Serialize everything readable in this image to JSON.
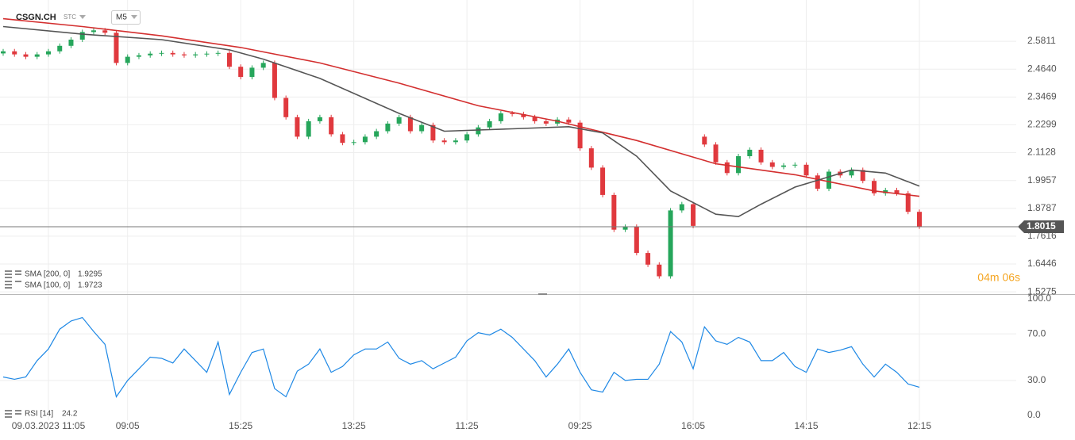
{
  "chart_data": [
    {
      "type": "candlestick",
      "title": "CSGN.CH",
      "source": "STC",
      "interval": "M5",
      "countdown": "04m 06s",
      "current_price": 1.8015,
      "up_color": "#26a65b",
      "down_color": "#e0393e",
      "grid": true,
      "categories": [
        null,
        null,
        null,
        null,
        "09.03.2023 11:05",
        null,
        null,
        null,
        null,
        null,
        null,
        "09:05",
        null,
        null,
        null,
        null,
        null,
        null,
        null,
        null,
        null,
        "15:25",
        null,
        null,
        null,
        null,
        null,
        null,
        null,
        null,
        null,
        "13:25",
        null,
        null,
        null,
        null,
        null,
        null,
        null,
        null,
        null,
        "11:25",
        null,
        null,
        null,
        null,
        null,
        null,
        null,
        null,
        null,
        "09:25",
        null,
        null,
        null,
        null,
        null,
        null,
        null,
        null,
        null,
        "16:05",
        null,
        null,
        null,
        null,
        null,
        null,
        null,
        null,
        null,
        "14:15",
        null,
        null,
        null,
        null,
        null,
        null,
        null,
        null,
        null,
        "12:15"
      ],
      "open": [
        2.53,
        2.539,
        2.526,
        2.516,
        2.526,
        2.539,
        2.562,
        2.588,
        2.62,
        2.627,
        2.617,
        2.49,
        2.516,
        2.522,
        2.529,
        2.532,
        2.526,
        2.522,
        2.526,
        2.529,
        2.532,
        2.474,
        2.431,
        2.47,
        2.49,
        2.343,
        2.262,
        2.18,
        2.245,
        2.262,
        2.19,
        2.154,
        2.157,
        2.18,
        2.203,
        2.235,
        2.262,
        2.203,
        2.229,
        2.164,
        2.157,
        2.164,
        2.19,
        2.219,
        2.245,
        2.278,
        2.275,
        2.262,
        2.245,
        2.235,
        2.252,
        2.239,
        2.131,
        2.05,
        1.935,
        1.789,
        1.801,
        1.691,
        1.642,
        1.593,
        1.87,
        1.896,
        2.18,
        2.147,
        2.072,
        2.027,
        2.098,
        2.125,
        2.072,
        2.053,
        2.059,
        2.062,
        2.017,
        1.961,
        2.033,
        2.017,
        2.04,
        1.994,
        1.942,
        1.955,
        1.942,
        1.864
      ],
      "high": [
        2.549,
        2.549,
        2.536,
        2.536,
        2.549,
        2.572,
        2.598,
        2.63,
        2.637,
        2.637,
        2.627,
        2.526,
        2.532,
        2.539,
        2.542,
        2.542,
        2.536,
        2.536,
        2.539,
        2.542,
        2.542,
        2.484,
        2.48,
        2.5,
        2.5,
        2.353,
        2.272,
        2.255,
        2.272,
        2.272,
        2.2,
        2.167,
        2.19,
        2.213,
        2.245,
        2.272,
        2.272,
        2.239,
        2.239,
        2.174,
        2.174,
        2.2,
        2.229,
        2.255,
        2.288,
        2.288,
        2.285,
        2.272,
        2.255,
        2.262,
        2.262,
        2.249,
        2.141,
        2.06,
        1.945,
        1.811,
        1.811,
        1.701,
        1.652,
        1.88,
        1.906,
        1.906,
        2.19,
        2.157,
        2.082,
        2.108,
        2.135,
        2.135,
        2.082,
        2.069,
        2.072,
        2.072,
        2.027,
        2.043,
        2.043,
        2.05,
        2.05,
        2.004,
        1.965,
        1.965,
        1.952,
        1.874
      ],
      "low": [
        2.52,
        2.516,
        2.506,
        2.506,
        2.516,
        2.529,
        2.552,
        2.578,
        2.61,
        2.607,
        2.48,
        2.48,
        2.506,
        2.512,
        2.519,
        2.516,
        2.512,
        2.512,
        2.516,
        2.519,
        2.464,
        2.421,
        2.421,
        2.46,
        2.333,
        2.252,
        2.17,
        2.17,
        2.235,
        2.18,
        2.144,
        2.144,
        2.147,
        2.17,
        2.193,
        2.225,
        2.193,
        2.193,
        2.154,
        2.147,
        2.147,
        2.154,
        2.18,
        2.209,
        2.235,
        2.265,
        2.252,
        2.235,
        2.225,
        2.225,
        2.229,
        2.121,
        2.04,
        1.925,
        1.779,
        1.779,
        1.681,
        1.632,
        1.583,
        1.583,
        1.86,
        1.795,
        2.137,
        2.062,
        2.017,
        2.017,
        2.088,
        2.062,
        2.043,
        2.043,
        2.049,
        2.007,
        1.951,
        1.951,
        2.007,
        2.007,
        1.984,
        1.932,
        1.932,
        1.932,
        1.854,
        1.792
      ],
      "close": [
        2.539,
        2.526,
        2.516,
        2.526,
        2.539,
        2.562,
        2.588,
        2.62,
        2.627,
        2.617,
        2.49,
        2.516,
        2.522,
        2.529,
        2.532,
        2.526,
        2.522,
        2.526,
        2.529,
        2.532,
        2.474,
        2.431,
        2.47,
        2.49,
        2.343,
        2.262,
        2.18,
        2.245,
        2.262,
        2.19,
        2.154,
        2.157,
        2.18,
        2.203,
        2.235,
        2.262,
        2.203,
        2.229,
        2.164,
        2.157,
        2.164,
        2.19,
        2.219,
        2.245,
        2.278,
        2.275,
        2.262,
        2.245,
        2.235,
        2.252,
        2.239,
        2.131,
        2.05,
        1.935,
        1.789,
        1.801,
        1.691,
        1.642,
        1.593,
        1.87,
        1.896,
        1.805,
        2.147,
        2.072,
        2.027,
        2.098,
        2.125,
        2.072,
        2.053,
        2.059,
        2.062,
        2.017,
        1.961,
        2.033,
        2.017,
        2.04,
        1.994,
        1.942,
        1.955,
        1.942,
        1.864,
        1.802
      ],
      "series": [
        {
          "name": "SMA [200, 0]",
          "color": "#d32f2f",
          "x": [
            0,
            7,
            14,
            21,
            28,
            35,
            42,
            49,
            56,
            63,
            70,
            77,
            81
          ],
          "values": [
            2.676,
            2.643,
            2.604,
            2.555,
            2.49,
            2.405,
            2.31,
            2.245,
            2.164,
            2.066,
            2.02,
            1.952,
            1.9295
          ]
        },
        {
          "name": "SMA [100, 0]",
          "color": "#555555",
          "x": [
            0,
            7,
            14,
            20,
            23,
            28,
            35,
            39,
            45,
            50,
            53,
            56,
            59,
            63,
            65,
            67,
            70,
            75,
            78,
            81
          ],
          "values": [
            2.643,
            2.611,
            2.588,
            2.545,
            2.506,
            2.425,
            2.278,
            2.203,
            2.213,
            2.222,
            2.196,
            2.098,
            1.952,
            1.854,
            1.844,
            1.896,
            1.968,
            2.04,
            2.027,
            1.9723
          ]
        }
      ],
      "ylim": [
        1.518,
        2.728
      ],
      "yticks": [
        2.5811,
        {
          "value": 2.464,
          "label": "2.4640"
        },
        2.3469,
        2.2299,
        2.1128,
        1.9957,
        1.8787,
        1.7616,
        1.6446,
        1.5275
      ]
    },
    {
      "type": "line",
      "grid": true,
      "series": [
        {
          "name": "RSI [14]",
          "color": "#1e88e5",
          "values": [
            33,
            31,
            33,
            47,
            57,
            74,
            81,
            84,
            72,
            61,
            16,
            30,
            40,
            50,
            49,
            45,
            57,
            47,
            37,
            63,
            18,
            37,
            54,
            57,
            23,
            16,
            38,
            44,
            57,
            37,
            42,
            52,
            57,
            57,
            63,
            49,
            44,
            47,
            40,
            45,
            50,
            64,
            71,
            69,
            74,
            67,
            57,
            47,
            33,
            44,
            57,
            37,
            22,
            20,
            37,
            30,
            31,
            31,
            44,
            72,
            63,
            40,
            76,
            64,
            61,
            67,
            63,
            47,
            47,
            54,
            42,
            37,
            57,
            54,
            56,
            59,
            44,
            33,
            44,
            37,
            27,
            24.2
          ]
        }
      ],
      "ylim": [
        0,
        100
      ],
      "yticks": [
        {
          "value": 100,
          "label": "100.0"
        },
        {
          "value": 70,
          "label": "70.0"
        },
        {
          "value": 30,
          "label": "30.0"
        },
        {
          "value": 0,
          "label": "0.0"
        }
      ]
    }
  ]
}
